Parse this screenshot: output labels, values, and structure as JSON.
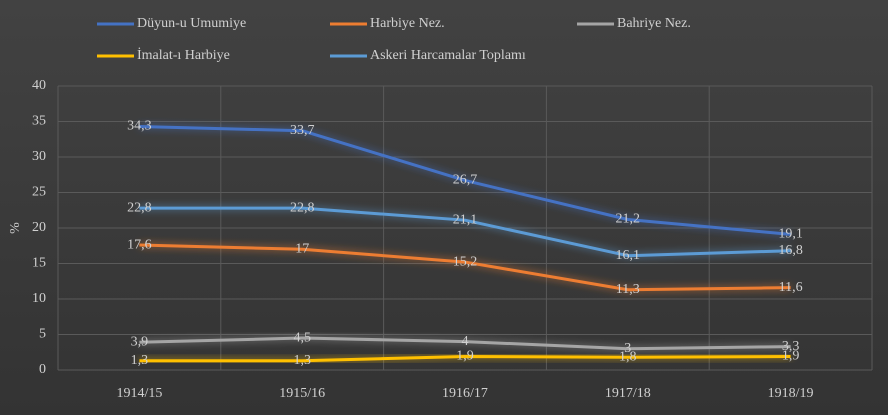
{
  "chart_data": {
    "type": "line",
    "y_label": "%",
    "categories": [
      "1914/15",
      "1915/16",
      "1916/17",
      "1917/18",
      "1918/19"
    ],
    "series": [
      {
        "name": "Düyun-u Umumiye",
        "color": "#4472c4",
        "values": [
          34.3,
          33.7,
          26.7,
          21.2,
          19.1
        ],
        "value_labels": [
          "34,3",
          "33,7",
          "26,7",
          "21,2",
          "19,1"
        ]
      },
      {
        "name": "Harbiye Nez.",
        "color": "#ed7d31",
        "values": [
          17.6,
          17,
          15.2,
          11.3,
          11.6
        ],
        "value_labels": [
          "17,6",
          "17",
          "15,2",
          "11,3",
          "11,6"
        ]
      },
      {
        "name": "Bahriye Nez.",
        "color": "#a5a5a5",
        "values": [
          3.9,
          4.5,
          4,
          3,
          3.3
        ],
        "value_labels": [
          "3,9",
          "4,5",
          "4",
          "3",
          "3,3"
        ]
      },
      {
        "name": "İmalat-ı Harbiye",
        "color": "#ffc000",
        "values": [
          1.3,
          1.3,
          1.9,
          1.8,
          1.9
        ],
        "value_labels": [
          "1,3",
          "1,3",
          "1,9",
          "1,8",
          "1,9"
        ]
      },
      {
        "name": "Askeri Harcamalar Toplamı",
        "color": "#5b9bd5",
        "values": [
          22.8,
          22.8,
          21.1,
          16.1,
          16.8
        ],
        "value_labels": [
          "22,8",
          "22,8",
          "21,1",
          "16,1",
          "16,8"
        ]
      }
    ],
    "ylim": [
      0,
      40
    ],
    "yticks": [
      0,
      5,
      10,
      15,
      20,
      25,
      30,
      35,
      40
    ],
    "grid": true,
    "legend": "top"
  }
}
